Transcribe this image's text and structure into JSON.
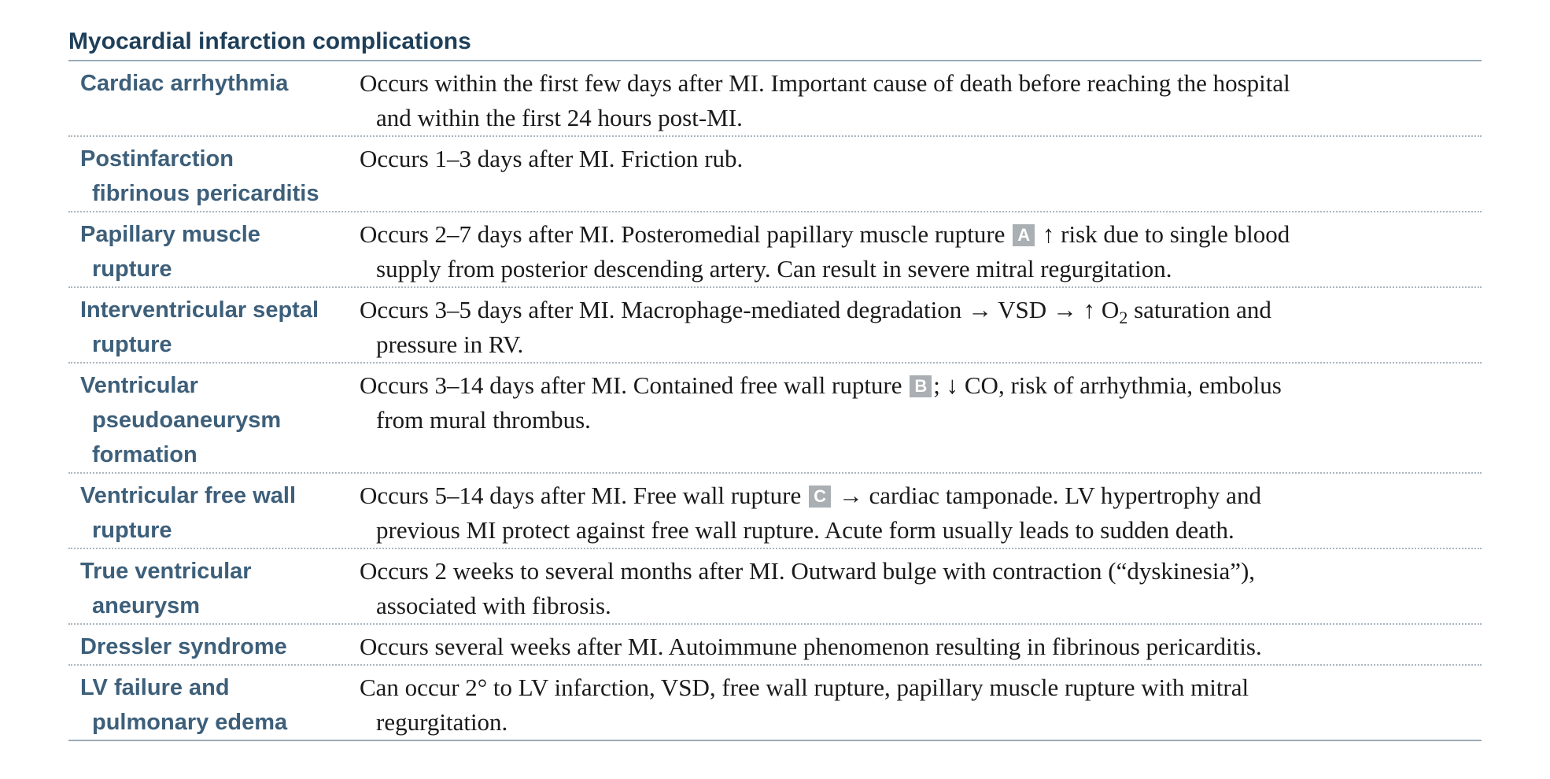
{
  "title": "Myocardial infarction complications",
  "rows": [
    {
      "term": [
        "Cardiac arrhythmia"
      ],
      "desc": [
        [
          {
            "t": "Occurs within the first few days after MI. Important cause of death before reaching the hospital"
          }
        ],
        [
          {
            "t": "and within the first 24 hours post-MI."
          }
        ]
      ]
    },
    {
      "term": [
        "Postinfarction",
        "fibrinous pericarditis"
      ],
      "desc": [
        [
          {
            "t": "Occurs 1–3 days after MI. Friction rub."
          }
        ]
      ]
    },
    {
      "term": [
        "Papillary muscle",
        "rupture"
      ],
      "desc": [
        [
          {
            "t": "Occurs 2–7 days after MI. Posteromedial papillary muscle rupture "
          },
          {
            "badge": "A"
          },
          {
            "t": " ↑ risk due to single blood"
          }
        ],
        [
          {
            "t": "supply from posterior descending artery. Can result in severe mitral regurgitation."
          }
        ]
      ]
    },
    {
      "term": [
        "Interventricular septal",
        "rupture"
      ],
      "desc": [
        [
          {
            "t": "Occurs 3–5 days after MI. Macrophage-mediated degradation → VSD → ↑ O"
          },
          {
            "sub": "2"
          },
          {
            "t": " saturation and"
          }
        ],
        [
          {
            "t": "pressure in RV."
          }
        ]
      ]
    },
    {
      "term": [
        "Ventricular",
        "pseudoaneurysm",
        "formation"
      ],
      "desc": [
        [
          {
            "t": "Occurs 3–14 days after MI. Contained free wall rupture "
          },
          {
            "badge": "B"
          },
          {
            "t": "; ↓ CO, risk of arrhythmia, embolus"
          }
        ],
        [
          {
            "t": "from mural thrombus."
          }
        ]
      ]
    },
    {
      "term": [
        "Ventricular free wall",
        "rupture"
      ],
      "desc": [
        [
          {
            "t": "Occurs 5–14 days after MI. Free wall rupture "
          },
          {
            "badge": "C"
          },
          {
            "t": " → cardiac tamponade. LV hypertrophy and"
          }
        ],
        [
          {
            "t": "previous MI protect against free wall rupture. Acute form usually leads to sudden death."
          }
        ]
      ]
    },
    {
      "term": [
        "True ventricular",
        "aneurysm"
      ],
      "desc": [
        [
          {
            "t": "Occurs 2 weeks to several months after MI. Outward bulge with contraction (“dyskinesia”),"
          }
        ],
        [
          {
            "t": "associated with fibrosis."
          }
        ]
      ]
    },
    {
      "term": [
        "Dressler syndrome"
      ],
      "desc": [
        [
          {
            "t": "Occurs several weeks after MI. Autoimmune phenomenon resulting in fibrinous pericarditis."
          }
        ]
      ]
    },
    {
      "term": [
        "LV failure and",
        "pulmonary edema"
      ],
      "desc": [
        [
          {
            "t": "Can occur 2° to LV infarction, VSD, free wall rupture, papillary muscle rupture with mitral"
          }
        ],
        [
          {
            "t": "regurgitation."
          }
        ]
      ]
    }
  ]
}
